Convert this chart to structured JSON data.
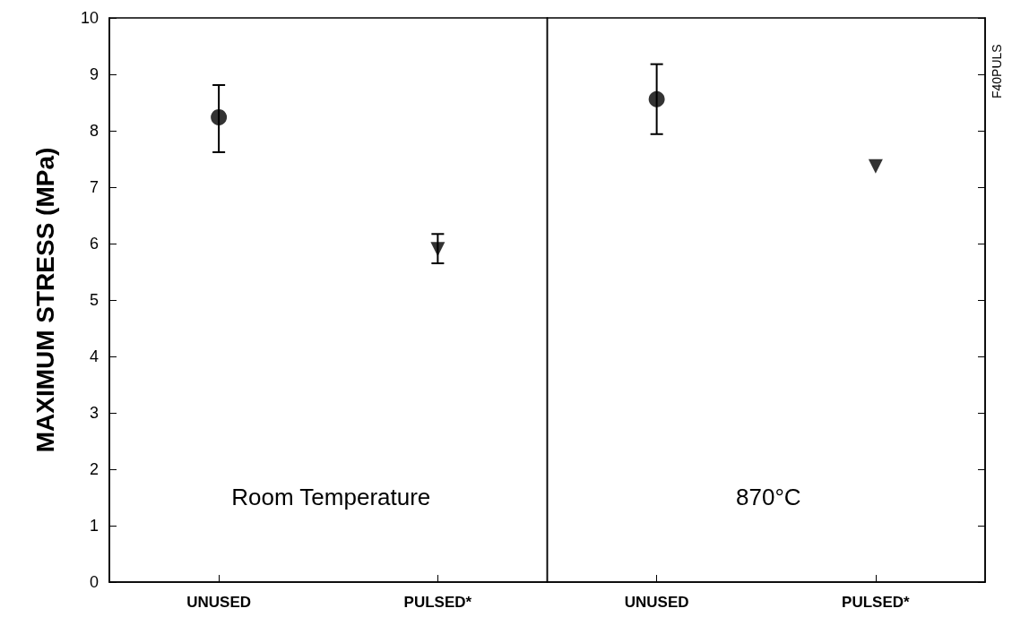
{
  "chart_data": [
    {
      "type": "scatter",
      "ylabel": "MAXIMUM STRESS (MPa)",
      "categories": [
        "UNUSED",
        "PULSED*"
      ],
      "ylim": [
        0,
        10
      ],
      "yticks": [
        0,
        1,
        2,
        3,
        4,
        5,
        6,
        7,
        8,
        9,
        10
      ],
      "annotations": [
        "Room Temperature"
      ],
      "series": [
        {
          "marker": "circle",
          "color": "#000000",
          "values": [
            8.24,
            null
          ],
          "errors": [
            [
              7.62,
              8.81
            ],
            null
          ]
        },
        {
          "marker": "triangle",
          "color": "#000000",
          "values": [
            null,
            5.9
          ],
          "errors": [
            null,
            [
              5.65,
              6.17
            ]
          ]
        }
      ]
    },
    {
      "type": "scatter",
      "categories": [
        "UNUSED",
        "PULSED*"
      ],
      "ylim": [
        0,
        10
      ],
      "yticks": [
        0,
        1,
        2,
        3,
        4,
        5,
        6,
        7,
        8,
        9,
        10
      ],
      "tick_labels": "x",
      "annotations": [
        "870°C",
        "F40PULS"
      ],
      "series": [
        {
          "marker": "circle",
          "color": "#000000",
          "values": [
            8.56,
            null
          ],
          "errors": [
            [
              7.94,
              9.18
            ],
            null
          ]
        },
        {
          "marker": "triangle",
          "color": "#000000",
          "values": [
            null,
            7.37
          ],
          "errors": [
            null,
            null
          ]
        }
      ]
    }
  ]
}
